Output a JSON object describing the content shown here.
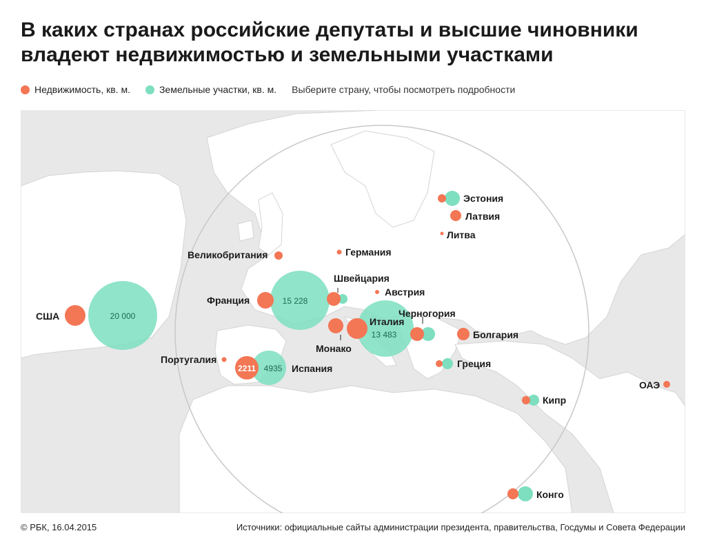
{
  "title": "В каких странах российские депутаты и высшие чиновники владеют недвижимостью и земельными участками",
  "legend": {
    "realty_label": "Недвижимость, кв. м.",
    "land_label": "Земельные участки, кв. м.",
    "hint": "Выберите страну, чтобы посмотреть подробности"
  },
  "colors": {
    "realty": "#f37655",
    "land": "#7ddfbf",
    "land_text": "#1d6a52",
    "map_bg": "#e8e8e8",
    "land_mass": "#ffffff"
  },
  "countries": {
    "usa": {
      "label": "США",
      "land_value": "20 000"
    },
    "france": {
      "label": "Франция",
      "land_value": "15 228"
    },
    "italy": {
      "label": "Италия",
      "land_value": "13 483"
    },
    "spain": {
      "label": "Испания",
      "realty_value": "2211",
      "land_value": "4935"
    },
    "portugal": {
      "label": "Португалия"
    },
    "uk": {
      "label": "Великобритания"
    },
    "germany": {
      "label": "Германия"
    },
    "switzerland": {
      "label": "Швейцария"
    },
    "austria": {
      "label": "Австрия"
    },
    "monaco": {
      "label": "Монако"
    },
    "montenegro": {
      "label": "Черногория"
    },
    "bulgaria": {
      "label": "Болгария"
    },
    "greece": {
      "label": "Греция"
    },
    "cyprus": {
      "label": "Кипр"
    },
    "estonia": {
      "label": "Эстония"
    },
    "latvia": {
      "label": "Латвия"
    },
    "lithuania": {
      "label": "Литва"
    },
    "uae": {
      "label": "ОАЭ"
    },
    "congo": {
      "label": "Конго"
    }
  },
  "footer": {
    "credit": "© РБК, 16.04.2015",
    "source": "Источники: официальные сайты администрации президента, правительства, Госдумы и Совета Федерации"
  }
}
